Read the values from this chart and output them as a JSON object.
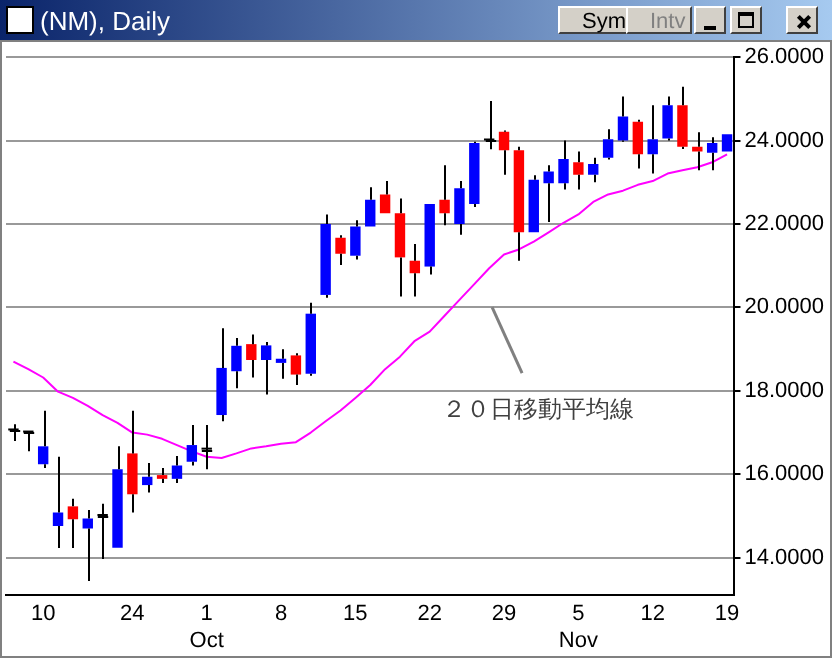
{
  "chart_data": {
    "type": "candlestick",
    "title": "(NM), Daily",
    "categories": [
      null,
      null,
      "10",
      null,
      null,
      null,
      null,
      null,
      "24",
      null,
      null,
      null,
      null,
      "1\nOct",
      null,
      null,
      null,
      null,
      "8",
      null,
      null,
      null,
      null,
      "15",
      null,
      null,
      null,
      null,
      "22",
      null,
      null,
      null,
      null,
      "29",
      null,
      null,
      null,
      null,
      "5\nNov",
      null,
      null,
      null,
      null,
      "12",
      null,
      null,
      null,
      null,
      "19"
    ],
    "ohlc": [
      [
        17.05,
        17.2,
        16.8,
        17.05
      ],
      [
        17,
        17,
        16.55,
        17
      ],
      [
        16.24,
        17.52,
        16.15,
        16.67
      ],
      [
        14.76,
        16.42,
        14.23,
        15.08
      ],
      [
        15.23,
        15.41,
        14.23,
        14.92
      ],
      [
        14.7,
        15.14,
        13.44,
        14.94
      ],
      [
        15,
        15.29,
        13.97,
        15
      ],
      [
        14.24,
        16.67,
        14.24,
        16.12
      ],
      [
        16.5,
        17.52,
        15.08,
        15.52
      ],
      [
        15.74,
        16.27,
        15.56,
        15.94
      ],
      [
        15.98,
        16.15,
        15.79,
        15.89
      ],
      [
        15.89,
        16.44,
        15.79,
        16.21
      ],
      [
        16.3,
        17.18,
        16.21,
        16.7
      ],
      [
        16.59,
        17.18,
        16.12,
        16.59
      ],
      [
        17.42,
        19.5,
        17.27,
        18.55
      ],
      [
        18.47,
        19.27,
        18.06,
        19.08
      ],
      [
        19.12,
        19.35,
        18.32,
        18.74
      ],
      [
        18.74,
        19.17,
        17.91,
        19.09
      ],
      [
        18.67,
        19,
        18.29,
        18.77
      ],
      [
        18.85,
        18.9,
        18.14,
        18.39
      ],
      [
        18.41,
        20.11,
        18.36,
        19.85
      ],
      [
        20.3,
        22.23,
        20.23,
        22
      ],
      [
        21.67,
        21.73,
        21.02,
        21.29
      ],
      [
        21.24,
        22.09,
        21.15,
        21.94
      ],
      [
        21.94,
        22.88,
        21.94,
        22.58
      ],
      [
        22.71,
        23.03,
        22.26,
        22.26
      ],
      [
        22.26,
        22.61,
        20.26,
        21.2
      ],
      [
        21.12,
        21.52,
        20.26,
        20.82
      ],
      [
        20.98,
        22.48,
        20.79,
        22.48
      ],
      [
        22.58,
        23.41,
        21.97,
        22.26
      ],
      [
        22,
        23.03,
        21.74,
        22.86
      ],
      [
        22.48,
        23.97,
        22.41,
        23.94
      ],
      [
        24,
        24.95,
        23.79,
        24
      ],
      [
        24.21,
        24.24,
        23.18,
        23.77
      ],
      [
        23.77,
        23.85,
        21.12,
        21.8
      ],
      [
        21.8,
        23.17,
        21.8,
        23.06
      ],
      [
        22.98,
        23.41,
        22.05,
        23.26
      ],
      [
        22.98,
        24,
        22.83,
        23.56
      ],
      [
        23.48,
        23.74,
        22.83,
        23.18
      ],
      [
        23.18,
        23.59,
        23,
        23.44
      ],
      [
        23.59,
        24.27,
        23.55,
        24.03
      ],
      [
        24,
        25.06,
        23.97,
        24.58
      ],
      [
        24.45,
        24.5,
        23.33,
        23.67
      ],
      [
        23.67,
        24.85,
        23.21,
        24.03
      ],
      [
        24.05,
        25.06,
        24,
        24.85
      ],
      [
        24.85,
        25.29,
        23.8,
        23.85
      ],
      [
        23.85,
        24.2,
        23.29,
        23.74
      ],
      [
        23.71,
        24.08,
        23.29,
        23.94
      ],
      [
        23.74,
        24.15,
        23.74,
        24.15
      ]
    ],
    "colors": [
      "#000000",
      "#000000",
      "#0000ff",
      "#0000ff",
      "#ff0000",
      "#0000ff",
      "#000000",
      "#0000ff",
      "#ff0000",
      "#0000ff",
      "#ff0000",
      "#0000ff",
      "#0000ff",
      "#000000",
      "#0000ff",
      "#0000ff",
      "#ff0000",
      "#0000ff",
      "#0000ff",
      "#ff0000",
      "#0000ff",
      "#0000ff",
      "#ff0000",
      "#0000ff",
      "#0000ff",
      "#ff0000",
      "#ff0000",
      "#ff0000",
      "#0000ff",
      "#ff0000",
      "#0000ff",
      "#0000ff",
      "#000000",
      "#ff0000",
      "#ff0000",
      "#0000ff",
      "#0000ff",
      "#0000ff",
      "#ff0000",
      "#0000ff",
      "#0000ff",
      "#0000ff",
      "#ff0000",
      "#0000ff",
      "#0000ff",
      "#ff0000",
      "#ff0000",
      "#0000ff",
      "#0000ff"
    ],
    "series": [
      {
        "type": "line",
        "color": "#ff00ff",
        "values": [
          18.7,
          18.52,
          18.32,
          17.98,
          17.83,
          17.64,
          17.42,
          17.23,
          17.0,
          16.95,
          16.85,
          16.7,
          16.55,
          16.42,
          16.39,
          16.5,
          16.62,
          16.67,
          16.73,
          16.77,
          17.0,
          17.27,
          17.53,
          17.83,
          18.14,
          18.52,
          18.82,
          19.2,
          19.42,
          19.8,
          20.18,
          20.56,
          20.94,
          21.27,
          21.39,
          21.58,
          21.8,
          22.03,
          22.23,
          22.53,
          22.71,
          22.8,
          22.94,
          23.03,
          23.21,
          23.29,
          23.36,
          23.48,
          23.67
        ]
      }
    ],
    "ylim": [
      13.1,
      26
    ],
    "yticks": [
      {
        "value": 14,
        "label": "14.0000"
      },
      {
        "value": 16,
        "label": "16.0000"
      },
      {
        "value": 18,
        "label": "18.0000"
      },
      {
        "value": 20,
        "label": "20.0000"
      },
      {
        "value": 22,
        "label": "22.0000"
      },
      {
        "value": 24,
        "label": "24.0000"
      },
      {
        "value": 26,
        "label": "26.0000"
      }
    ],
    "grid": "y",
    "legend": false,
    "marker": "none",
    "annotations": [
      "２０日移動平均線",
      "Sym",
      "Intv"
    ]
  }
}
